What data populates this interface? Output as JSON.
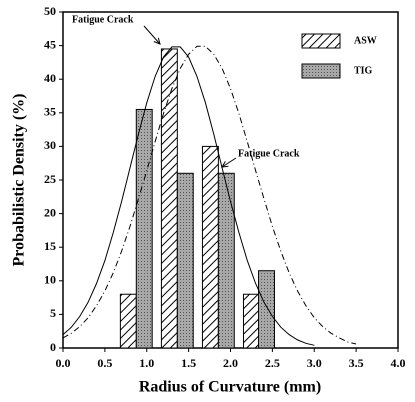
{
  "chart_data": {
    "type": "bar",
    "xlabel": "Radius of Curvature (mm)",
    "ylabel": "Probabilistic Density (%)",
    "xlim": [
      0,
      4
    ],
    "ylim": [
      0,
      50
    ],
    "xticks": [
      {
        "value": 0,
        "label": "0.0"
      },
      0.5,
      {
        "value": 1,
        "label": "1.0"
      },
      1.5,
      {
        "value": 2,
        "label": "2.0"
      },
      2.5,
      {
        "value": 3,
        "label": "3.0"
      },
      3.5,
      {
        "value": 4,
        "label": "4.0"
      }
    ],
    "yticks": [
      0,
      5,
      10,
      15,
      20,
      25,
      30,
      35,
      40,
      45,
      50
    ],
    "legend": "upper right",
    "series": [
      {
        "name": "ASW",
        "color": "#000000",
        "pattern": "hatch",
        "x": [
          0.78,
          1.27,
          1.76,
          2.25
        ],
        "values": [
          8,
          44.5,
          30,
          8
        ]
      },
      {
        "name": "TIG",
        "color": "#a8a8a8",
        "pattern": "dots",
        "x": [
          0.97,
          1.46,
          1.95,
          2.43
        ],
        "values": [
          35.5,
          26,
          26,
          11.5
        ]
      }
    ],
    "curves": [
      {
        "style": "solid",
        "x": [
          0,
          0.1,
          0.2,
          0.3,
          0.4,
          0.5,
          0.6,
          0.7,
          0.8,
          0.9,
          1,
          1.1,
          1.2,
          1.3,
          1.4,
          1.5,
          1.6,
          1.7,
          1.8,
          1.9,
          2,
          2.1,
          2.2,
          2.3,
          2.4,
          2.5,
          2.6,
          2.7,
          2.8,
          2.9,
          3
        ],
        "values": [
          2,
          3.1,
          4.7,
          6.8,
          9.6,
          13,
          17.2,
          21.8,
          26.8,
          31.8,
          36.5,
          40.4,
          43.3,
          44.8,
          44.8,
          43.3,
          40.4,
          36.5,
          31.8,
          26.8,
          21.8,
          17.2,
          13,
          9.6,
          6.8,
          4.7,
          3.1,
          2,
          1.2,
          0.7,
          0.4
        ]
      },
      {
        "style": "dashed",
        "x": [
          0,
          0.1,
          0.2,
          0.3,
          0.4,
          0.5,
          0.6,
          0.7,
          0.8,
          0.9,
          1,
          1.1,
          1.2,
          1.3,
          1.4,
          1.5,
          1.6,
          1.7,
          1.8,
          1.9,
          2,
          2.1,
          2.2,
          2.3,
          2.4,
          2.5,
          2.6,
          2.7,
          2.8,
          2.9,
          3,
          3.1,
          3.2,
          3.3,
          3.4,
          3.5
        ],
        "values": [
          1.5,
          2.2,
          3.2,
          4.5,
          6.3,
          8.5,
          11.2,
          14.4,
          18.1,
          22.2,
          26.4,
          30.7,
          34.9,
          38.6,
          41.6,
          43.7,
          44.9,
          44.9,
          43.7,
          41.6,
          38.6,
          34.9,
          30.7,
          26.4,
          22.2,
          18.1,
          14.4,
          11.2,
          8.5,
          6.3,
          4.5,
          3.2,
          2.2,
          1.5,
          0.9,
          0.6
        ]
      }
    ],
    "annotations": [
      "Fatigue Crack",
      "Fatigue Crack"
    ]
  }
}
